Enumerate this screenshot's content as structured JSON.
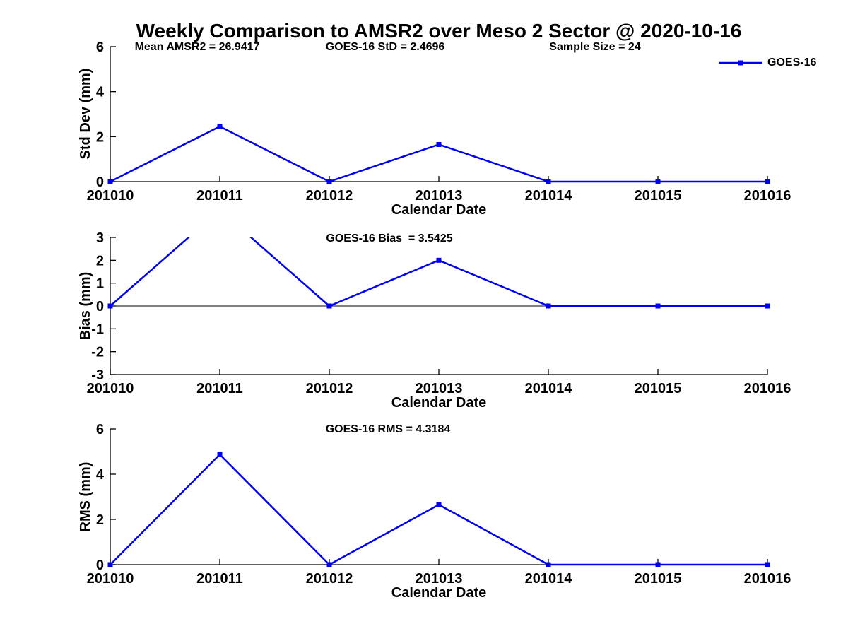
{
  "title": "Weekly Comparison to AMSR2 over Meso 2 Sector @ 2020-10-16",
  "stats_row": {
    "mean_amsr2": "Mean AMSR2 = 26.9417",
    "goes16_std": "GOES-16 StD = 2.4696",
    "sample_size": "Sample Size = 24"
  },
  "legend": {
    "label": "GOES-16",
    "marker": "square",
    "position": "top-right",
    "color": "#0000EE"
  },
  "colors": {
    "line": "#0000EE",
    "axis": "#000000",
    "background": "#FFFFFF"
  },
  "chart_data": [
    {
      "type": "line",
      "panel": "std-dev",
      "categories": [
        "201010",
        "201011",
        "201012",
        "201013",
        "201014",
        "201015",
        "201016"
      ],
      "series": [
        {
          "name": "GOES-16",
          "values": [
            0,
            2.45,
            0,
            1.65,
            0,
            0,
            0
          ]
        }
      ],
      "xlabel": "Calendar Date",
      "ylabel": "Std Dev (mm)",
      "ylim": [
        0,
        6
      ],
      "yticks": [
        0,
        2,
        4,
        6
      ],
      "zero_line": false,
      "grid": false
    },
    {
      "type": "line",
      "panel": "bias",
      "annotation": "GOES-16 Bias  = 3.5425",
      "categories": [
        "201010",
        "201011",
        "201012",
        "201013",
        "201014",
        "201015",
        "201016"
      ],
      "series": [
        {
          "name": "GOES-16",
          "values": [
            0,
            4.2,
            0,
            2.0,
            0,
            0,
            0
          ]
        }
      ],
      "clip_note": "201011 value (~4.2) exceeds ylim and the line is clipped at y=3",
      "xlabel": "Calendar Date",
      "ylabel": "Bias (mm)",
      "ylim": [
        -3,
        3
      ],
      "yticks": [
        -3,
        -2,
        -1,
        0,
        1,
        2,
        3
      ],
      "zero_line": true,
      "grid": false
    },
    {
      "type": "line",
      "panel": "rms",
      "annotation": "GOES-16 RMS = 4.3184",
      "categories": [
        "201010",
        "201011",
        "201012",
        "201013",
        "201014",
        "201015",
        "201016"
      ],
      "series": [
        {
          "name": "GOES-16",
          "values": [
            0,
            4.87,
            0,
            2.65,
            0,
            0,
            0
          ]
        }
      ],
      "xlabel": "Calendar Date",
      "ylabel": "RMS (mm)",
      "ylim": [
        0,
        6
      ],
      "yticks": [
        0,
        2,
        4,
        6
      ],
      "zero_line": false,
      "grid": false
    }
  ]
}
